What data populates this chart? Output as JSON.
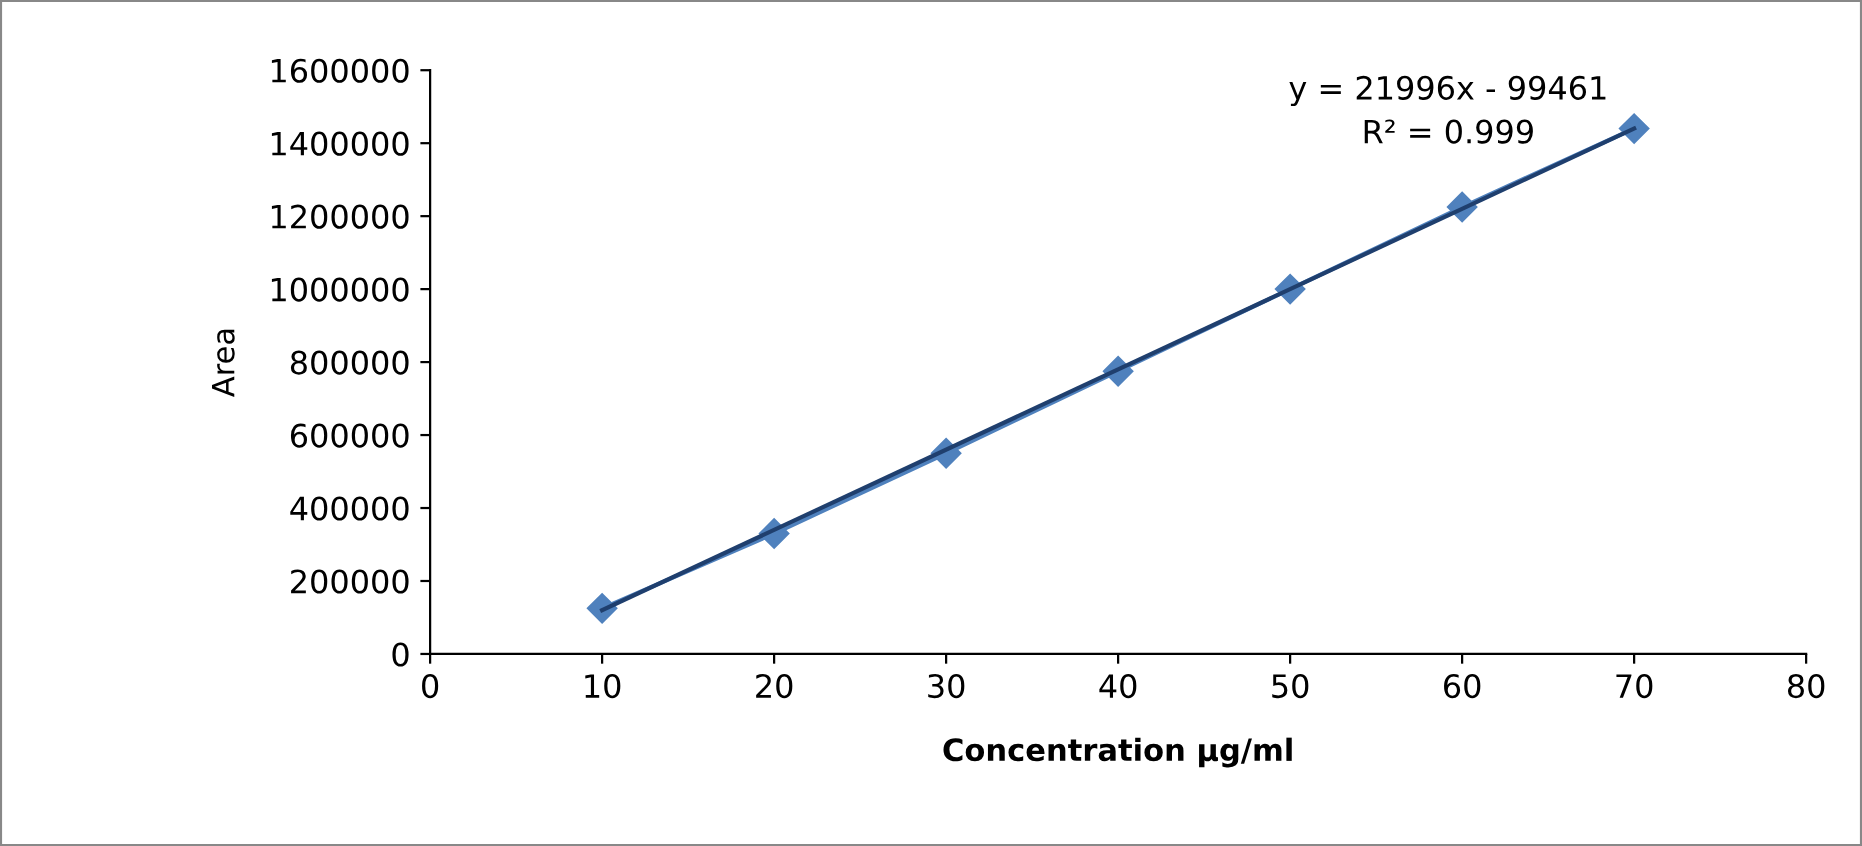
{
  "chart_data": {
    "type": "line",
    "xlabel": "Concentration µg/ml",
    "ylabel": "Area",
    "series": [
      {
        "color": "#4f81bd",
        "marker": "diamond",
        "x": [
          10,
          20,
          30,
          40,
          50,
          60,
          70
        ],
        "values": [
          125000,
          330000,
          550000,
          775000,
          1000000,
          1225000,
          1440000
        ]
      },
      {
        "color": "#1f3f6e",
        "marker": "none",
        "x": [
          10,
          70
        ],
        "values": [
          120000,
          1440000
        ]
      }
    ],
    "annotations": [
      "y = 21996x - 99461",
      "R² = 0.999"
    ],
    "xlim": [
      0,
      80
    ],
    "xticks": [
      0,
      10,
      20,
      30,
      40,
      50,
      60,
      70,
      80
    ],
    "ylim": [
      0,
      1600000
    ],
    "yticks": [
      0,
      200000,
      400000,
      600000,
      800000,
      1000000,
      1200000,
      1400000,
      1600000
    ],
    "grid": false,
    "legend": false
  }
}
